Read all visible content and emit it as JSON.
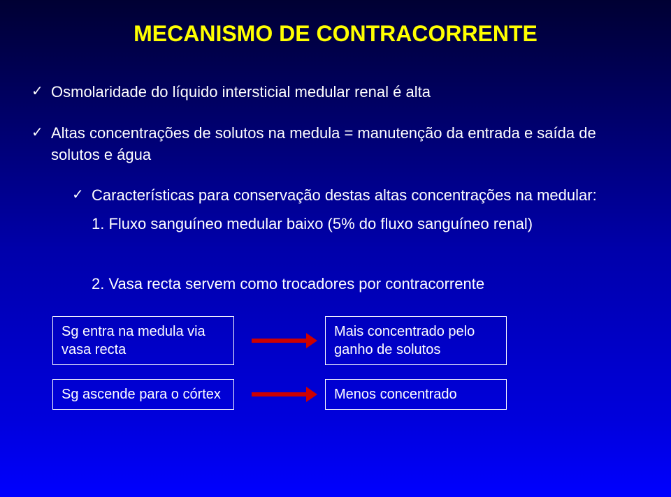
{
  "title": "MECANISMO DE CONTRACORRENTE",
  "bullets": {
    "b1": "Osmolaridade do líquido intersticial medular renal é alta",
    "b2": "Altas concentrações de solutos na medula = manutenção da entrada e saída de solutos e água",
    "b3": "Características para conservação destas altas concentrações na medular:"
  },
  "numbered": {
    "n1": "1. Fluxo sanguíneo medular baixo (5% do fluxo sanguíneo renal)",
    "n2": "2. Vasa recta servem como trocadores por contracorrente"
  },
  "flows": {
    "left1": "Sg entra na medula via vasa recta",
    "right1": "Mais concentrado pelo ganho de solutos",
    "left2": "Sg ascende para o córtex",
    "right2": "Menos concentrado"
  },
  "colors": {
    "title": "#ffff00",
    "text": "#ffffff",
    "arrow": "#cc0000",
    "border": "#ffffff"
  }
}
